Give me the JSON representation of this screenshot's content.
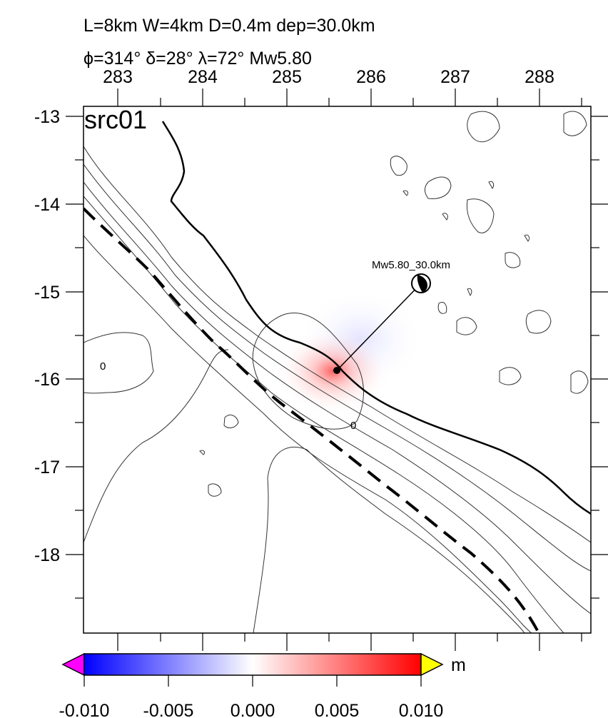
{
  "header": {
    "line1": "L=8km W=4km D=0.4m dep=30.0km",
    "line2": "ϕ=314° δ=28° λ=72° Mw5.80"
  },
  "map": {
    "panel_label": "src01",
    "x_ticks": [
      "283",
      "284",
      "285",
      "286",
      "287",
      "288"
    ],
    "y_ticks": [
      "-13",
      "-14",
      "-15",
      "-16",
      "-17",
      "-18"
    ],
    "x_range": [
      282.57,
      288.57
    ],
    "y_range": [
      -18.9,
      -12.9
    ],
    "source_label": "Mw5.80_30.0km",
    "contour_labels": [
      "0",
      "0"
    ],
    "epicenter": {
      "lon": 285.6,
      "lat": -15.9
    },
    "beachball": {
      "lon": 286.6,
      "lat": -14.9
    }
  },
  "colorbar": {
    "unit": "m",
    "tick_labels": [
      "-0.010",
      "-0.005",
      "0.000",
      "0.005",
      "0.010"
    ],
    "range": [
      -0.01,
      0.01
    ],
    "colors": {
      "low": "#0000ff",
      "mid": "#ffffff",
      "high": "#ff0000",
      "under": "#ff00ff",
      "over": "#ffff00"
    }
  }
}
